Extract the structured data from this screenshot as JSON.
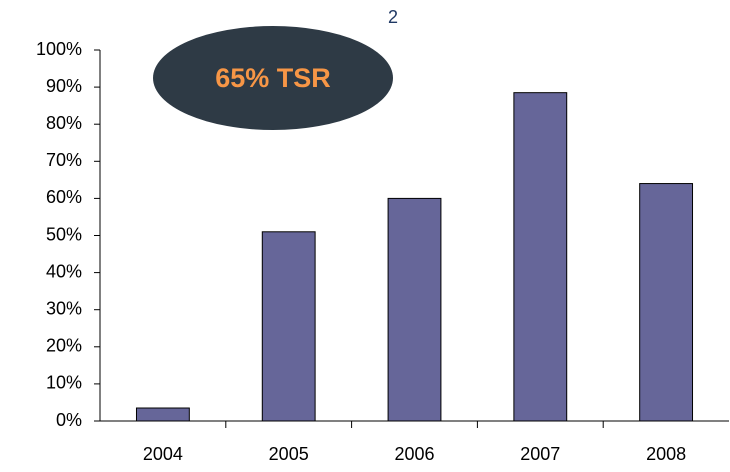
{
  "chart_data": {
    "type": "bar",
    "annotations": [
      "65% TSR",
      "2"
    ],
    "categories": [
      "2004",
      "2005",
      "2006",
      "2007",
      "2008"
    ],
    "values": [
      3.5,
      51,
      60,
      88.5,
      64
    ],
    "color": "#666699",
    "ylim": [
      0,
      100
    ],
    "yticks": [
      {
        "value": 0,
        "label": "0%"
      },
      {
        "value": 10,
        "label": "10%"
      },
      {
        "value": 20,
        "label": "20%"
      },
      {
        "value": 30,
        "label": "30%"
      },
      {
        "value": 40,
        "label": "40%"
      },
      {
        "value": 50,
        "label": "50%"
      },
      {
        "value": 60,
        "label": "60%"
      },
      {
        "value": 70,
        "label": "70%"
      },
      {
        "value": 80,
        "label": "80%"
      },
      {
        "value": 90,
        "label": "90%"
      },
      {
        "value": 100,
        "label": "100%"
      }
    ],
    "grid": false
  }
}
